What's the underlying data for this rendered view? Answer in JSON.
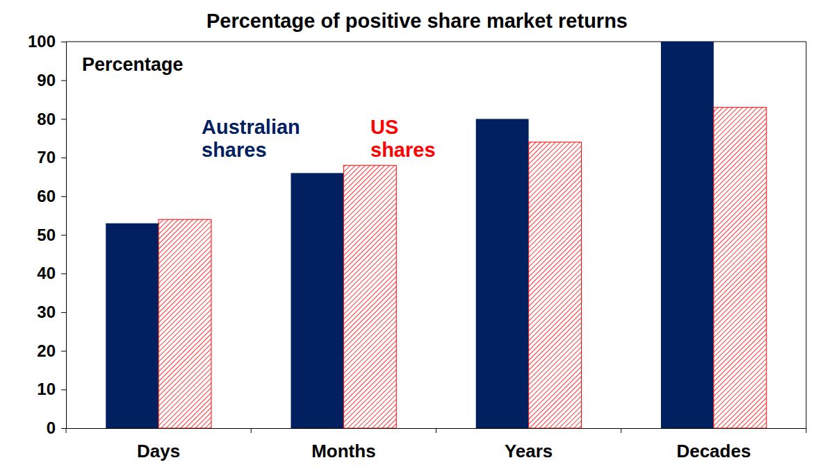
{
  "chart_data": {
    "type": "bar",
    "title": "Percentage of positive share market returns",
    "y_label": "Percentage",
    "categories": [
      "Days",
      "Months",
      "Years",
      "Decades"
    ],
    "series": [
      {
        "name": "Australian shares",
        "color": "#002060",
        "values": [
          53,
          66,
          80,
          100
        ]
      },
      {
        "name": "US shares",
        "color": "#ff0000",
        "values": [
          54,
          68,
          74,
          83
        ]
      }
    ],
    "ylim": [
      0,
      100
    ],
    "yticks": [
      0,
      10,
      20,
      30,
      40,
      50,
      60,
      70,
      80,
      90,
      100
    ],
    "grid": false,
    "legend": "upper left"
  }
}
